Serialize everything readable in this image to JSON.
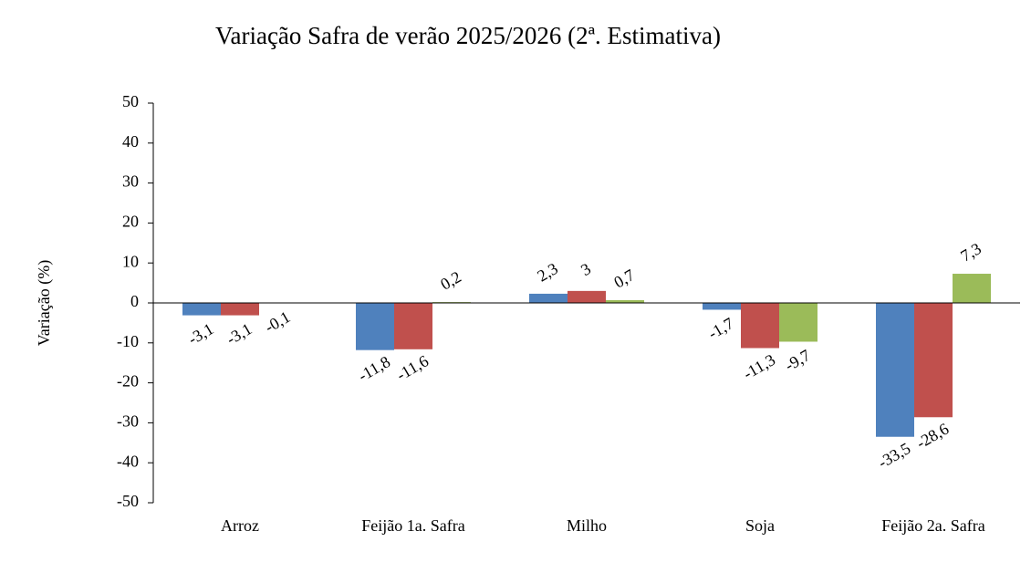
{
  "chart_data": {
    "type": "bar",
    "title": "Variação Safra de verão 2025/2026 (2ª. Estimativa)",
    "y_label": "Variação (%)",
    "categories": [
      "Arroz",
      "Feijão 1a. Safra",
      "Milho",
      "Soja",
      "Feijão 2a. Safra"
    ],
    "series": [
      {
        "color": "#4f81bd",
        "values": [
          -3.1,
          -11.8,
          2.3,
          -1.7,
          -33.5
        ],
        "value_labels": [
          "-3,1",
          "-11,8",
          "2,3",
          "-1,7",
          "-33,5"
        ]
      },
      {
        "color": "#c0504d",
        "values": [
          -3.1,
          -11.6,
          3,
          -11.3,
          -28.6
        ],
        "value_labels": [
          "-3,1",
          "-11,6",
          "3",
          "-11,3",
          "-28,6"
        ]
      },
      {
        "color": "#9bbb59",
        "values": [
          -0.1,
          0.2,
          0.7,
          -9.7,
          7.3
        ],
        "value_labels": [
          "-0,1",
          "0,2",
          "0,7",
          "-9,7",
          "7,3"
        ]
      }
    ],
    "ylim": [
      -50,
      50
    ],
    "yticks": [
      -50,
      -40,
      -30,
      -20,
      -10,
      0,
      10,
      20,
      30,
      40,
      50
    ],
    "grid": false
  }
}
